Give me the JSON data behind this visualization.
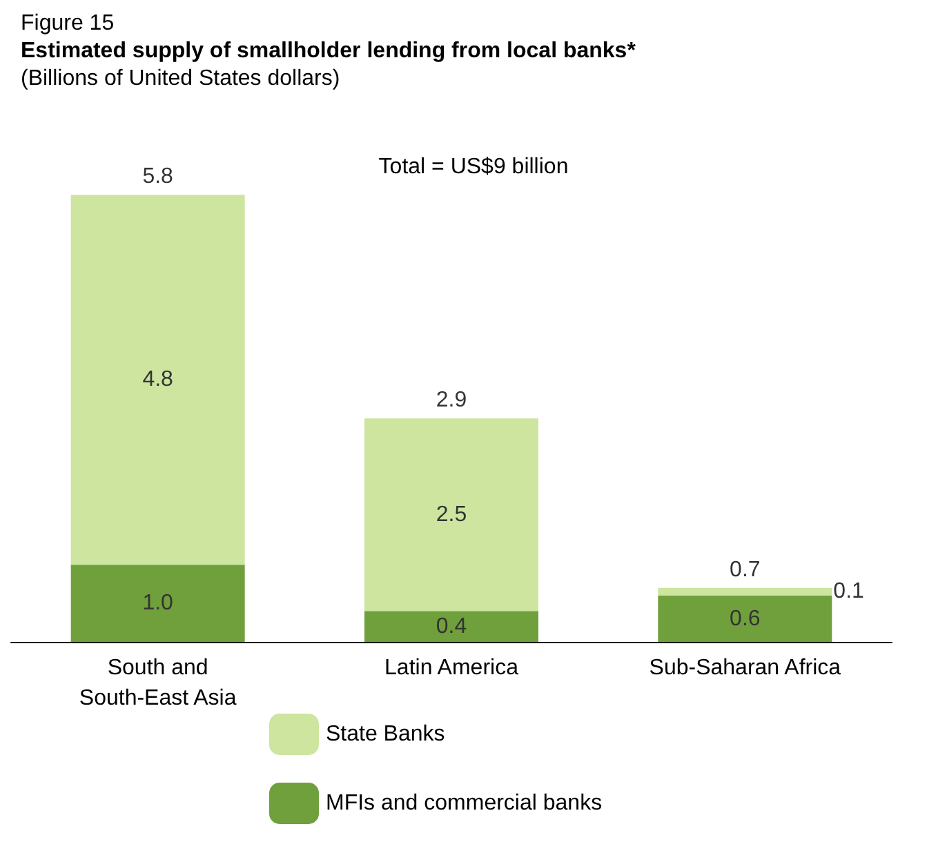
{
  "chart_data": {
    "type": "bar",
    "title": "Estimated supply of smallholder lending from local banks*",
    "subtitle": "(Billions of United States dollars)",
    "annotations": [
      "Figure 15",
      "Total = US$9 billion"
    ],
    "categories": [
      "South and\nSouth-East Asia",
      "Latin America",
      "Sub-Saharan Africa"
    ],
    "stacked": true,
    "totals": [
      "5.8",
      "2.9",
      "0.7"
    ],
    "legend": "bottom",
    "series": [
      {
        "name": "MFIs and commercial banks",
        "color": "#70a03c",
        "values": [
          1.0,
          0.4,
          0.6
        ],
        "value_labels": [
          "1.0",
          "0.4",
          "0.6"
        ]
      },
      {
        "name": "State Banks",
        "color": "#cde59f",
        "values": [
          4.8,
          2.5,
          0.1
        ],
        "value_labels": [
          "4.8",
          "2.5",
          "0.1"
        ]
      }
    ]
  }
}
